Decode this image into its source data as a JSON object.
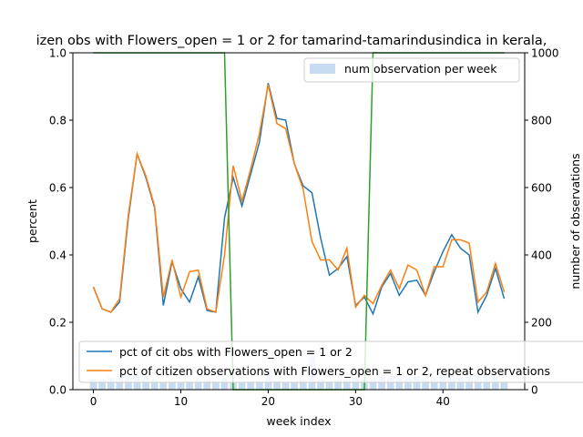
{
  "chart_data": {
    "type": "line",
    "title": "izen obs with Flowers_open = 1 or 2 for tamarind-tamarindusindica in kerala,",
    "xlabel": "week index",
    "ylabel_left": "percent",
    "ylabel_right": "number of observations",
    "xlim": [
      -2.35,
      49.35
    ],
    "ylim_left": [
      0,
      1.0
    ],
    "ylim_right": [
      0,
      1000
    ],
    "x_ticks": [
      "0",
      "10",
      "20",
      "30",
      "40"
    ],
    "y_ticks_left": [
      "0.0",
      "0.2",
      "0.4",
      "0.6",
      "0.8",
      "1.0"
    ],
    "y_ticks_right": [
      "0",
      "200",
      "400",
      "600",
      "800",
      "1000"
    ],
    "grid": false,
    "legend_top_right": "num observation per week",
    "legend_lower_left": [
      "pct of cit obs with Flowers_open = 1 or 2",
      "pct of citizen observations with Flowers_open = 1 or 2, repeat observations"
    ],
    "colors": {
      "series_blue": "#1f77b4",
      "series_orange": "#ff7f0e",
      "series_green": "#2ca02c",
      "bars": "#c6dbef"
    },
    "x": [
      0,
      1,
      2,
      3,
      4,
      5,
      6,
      7,
      8,
      9,
      10,
      11,
      12,
      13,
      14,
      15,
      16,
      17,
      18,
      19,
      20,
      21,
      22,
      23,
      24,
      25,
      26,
      27,
      28,
      29,
      30,
      31,
      32,
      33,
      34,
      35,
      36,
      37,
      38,
      39,
      40,
      41,
      42,
      43,
      44,
      45,
      46,
      47
    ],
    "series": [
      {
        "name": "pct of cit obs with Flowers_open = 1 or 2",
        "axis": "left",
        "values": [
          0.305,
          0.24,
          0.23,
          0.26,
          0.51,
          0.7,
          0.63,
          0.54,
          0.25,
          0.38,
          0.3,
          0.26,
          0.335,
          0.235,
          0.23,
          0.51,
          0.63,
          0.545,
          0.64,
          0.735,
          0.91,
          0.805,
          0.8,
          0.67,
          0.605,
          0.585,
          0.45,
          0.34,
          0.36,
          0.395,
          0.25,
          0.275,
          0.225,
          0.305,
          0.345,
          0.28,
          0.32,
          0.325,
          0.28,
          0.35,
          0.41,
          0.46,
          0.42,
          0.4,
          0.23,
          0.28,
          0.36,
          0.27
        ]
      },
      {
        "name": "pct of citizen observations with Flowers_open = 1 or 2, repeat observations",
        "axis": "left",
        "values": [
          0.305,
          0.24,
          0.23,
          0.27,
          0.52,
          0.7,
          0.635,
          0.545,
          0.275,
          0.385,
          0.275,
          0.35,
          0.355,
          0.24,
          0.23,
          0.4,
          0.665,
          0.56,
          0.655,
          0.76,
          0.905,
          0.79,
          0.775,
          0.67,
          0.595,
          0.44,
          0.385,
          0.385,
          0.355,
          0.42,
          0.245,
          0.28,
          0.255,
          0.31,
          0.355,
          0.3,
          0.37,
          0.355,
          0.28,
          0.365,
          0.365,
          0.445,
          0.445,
          0.435,
          0.26,
          0.29,
          0.375,
          0.29
        ]
      },
      {
        "name": "",
        "axis": "left",
        "values": [
          1,
          1,
          1,
          1,
          1,
          1,
          1,
          1,
          1,
          1,
          1,
          1,
          1,
          1,
          1,
          1,
          0,
          0,
          0,
          0,
          0,
          0,
          0,
          0,
          0,
          0,
          0,
          0,
          0,
          0,
          0,
          0,
          1,
          1,
          1,
          1,
          1,
          1,
          1,
          1,
          1,
          1,
          1,
          1,
          1,
          1,
          1,
          1
        ]
      },
      {
        "name": "num observation per week",
        "axis": "right",
        "type": "bar",
        "values": [
          30,
          30,
          35,
          45,
          40,
          45,
          40,
          30,
          20,
          20,
          20,
          25,
          30,
          30,
          25,
          35,
          20,
          20,
          25,
          25,
          60,
          25,
          20,
          20,
          30,
          100,
          30,
          25,
          30,
          30,
          35,
          30,
          30,
          40,
          35,
          40,
          35,
          40,
          30,
          35,
          40,
          45,
          35,
          40,
          50,
          45,
          40,
          25
        ]
      }
    ]
  }
}
